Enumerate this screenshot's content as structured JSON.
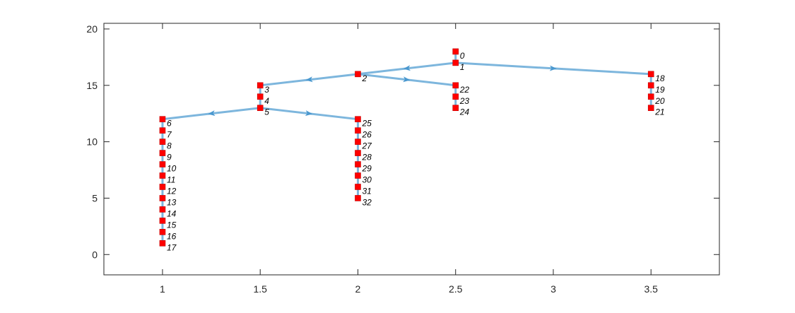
{
  "figure": {
    "type": "directed-tree",
    "colors": {
      "edge": "#7db6dd",
      "arrow": "#4a98cf",
      "node": "#ff0000",
      "node_border": "#c00000",
      "axes": "#262626"
    }
  },
  "axes": {
    "xlim": [
      0.7,
      3.85
    ],
    "ylim": [
      -1.8,
      20.5
    ],
    "xticks": [
      {
        "value": 1,
        "label": "1"
      },
      {
        "value": 1.5,
        "label": "1.5"
      },
      {
        "value": 2,
        "label": "2"
      },
      {
        "value": 2.5,
        "label": "2.5"
      },
      {
        "value": 3,
        "label": "3"
      },
      {
        "value": 3.5,
        "label": "3.5"
      }
    ],
    "yticks": [
      {
        "value": 0,
        "label": "0"
      },
      {
        "value": 5,
        "label": "5"
      },
      {
        "value": 10,
        "label": "10"
      },
      {
        "value": 15,
        "label": "15"
      },
      {
        "value": 20,
        "label": "20"
      }
    ],
    "grid": false,
    "box": true
  },
  "nodes": [
    {
      "id": "0",
      "label": "0",
      "x": 2.5,
      "y": 18
    },
    {
      "id": "1",
      "label": "1",
      "x": 2.5,
      "y": 17
    },
    {
      "id": "2",
      "label": "2",
      "x": 2.0,
      "y": 16
    },
    {
      "id": "3",
      "label": "3",
      "x": 1.5,
      "y": 15
    },
    {
      "id": "4",
      "label": "4",
      "x": 1.5,
      "y": 14
    },
    {
      "id": "5",
      "label": "5",
      "x": 1.5,
      "y": 13
    },
    {
      "id": "6",
      "label": "6",
      "x": 1.0,
      "y": 12
    },
    {
      "id": "7",
      "label": "7",
      "x": 1.0,
      "y": 11
    },
    {
      "id": "8",
      "label": "8",
      "x": 1.0,
      "y": 10
    },
    {
      "id": "9",
      "label": "9",
      "x": 1.0,
      "y": 9
    },
    {
      "id": "10",
      "label": "10",
      "x": 1.0,
      "y": 8
    },
    {
      "id": "11",
      "label": "11",
      "x": 1.0,
      "y": 7
    },
    {
      "id": "12",
      "label": "12",
      "x": 1.0,
      "y": 6
    },
    {
      "id": "13",
      "label": "13",
      "x": 1.0,
      "y": 5
    },
    {
      "id": "14",
      "label": "14",
      "x": 1.0,
      "y": 4
    },
    {
      "id": "15",
      "label": "15",
      "x": 1.0,
      "y": 3
    },
    {
      "id": "16",
      "label": "16",
      "x": 1.0,
      "y": 2
    },
    {
      "id": "17",
      "label": "17",
      "x": 1.0,
      "y": 1
    },
    {
      "id": "18",
      "label": "18",
      "x": 3.5,
      "y": 16
    },
    {
      "id": "19",
      "label": "19",
      "x": 3.5,
      "y": 15
    },
    {
      "id": "20",
      "label": "20",
      "x": 3.5,
      "y": 14
    },
    {
      "id": "21",
      "label": "21",
      "x": 3.5,
      "y": 13
    },
    {
      "id": "22",
      "label": "22",
      "x": 2.5,
      "y": 15
    },
    {
      "id": "23",
      "label": "23",
      "x": 2.5,
      "y": 14
    },
    {
      "id": "24",
      "label": "24",
      "x": 2.5,
      "y": 13
    },
    {
      "id": "25",
      "label": "25",
      "x": 2.0,
      "y": 12
    },
    {
      "id": "26",
      "label": "26",
      "x": 2.0,
      "y": 11
    },
    {
      "id": "27",
      "label": "27",
      "x": 2.0,
      "y": 10
    },
    {
      "id": "28",
      "label": "28",
      "x": 2.0,
      "y": 9
    },
    {
      "id": "29",
      "label": "29",
      "x": 2.0,
      "y": 8
    },
    {
      "id": "30",
      "label": "30",
      "x": 2.0,
      "y": 7
    },
    {
      "id": "31",
      "label": "31",
      "x": 2.0,
      "y": 6
    },
    {
      "id": "32",
      "label": "32",
      "x": 2.0,
      "y": 5
    }
  ],
  "edges": [
    {
      "from": "0",
      "to": "1",
      "arrow": false
    },
    {
      "from": "1",
      "to": "2",
      "arrow": true
    },
    {
      "from": "1",
      "to": "18",
      "arrow": true
    },
    {
      "from": "2",
      "to": "3",
      "arrow": true
    },
    {
      "from": "2",
      "to": "22",
      "arrow": true
    },
    {
      "from": "3",
      "to": "4",
      "arrow": false
    },
    {
      "from": "4",
      "to": "5",
      "arrow": false
    },
    {
      "from": "5",
      "to": "6",
      "arrow": true
    },
    {
      "from": "5",
      "to": "25",
      "arrow": true
    },
    {
      "from": "6",
      "to": "7",
      "arrow": false
    },
    {
      "from": "7",
      "to": "8",
      "arrow": false
    },
    {
      "from": "8",
      "to": "9",
      "arrow": false
    },
    {
      "from": "9",
      "to": "10",
      "arrow": false
    },
    {
      "from": "10",
      "to": "11",
      "arrow": false
    },
    {
      "from": "11",
      "to": "12",
      "arrow": false
    },
    {
      "from": "12",
      "to": "13",
      "arrow": false
    },
    {
      "from": "13",
      "to": "14",
      "arrow": false
    },
    {
      "from": "14",
      "to": "15",
      "arrow": false
    },
    {
      "from": "15",
      "to": "16",
      "arrow": false
    },
    {
      "from": "16",
      "to": "17",
      "arrow": false
    },
    {
      "from": "18",
      "to": "19",
      "arrow": false
    },
    {
      "from": "19",
      "to": "20",
      "arrow": false
    },
    {
      "from": "20",
      "to": "21",
      "arrow": false
    },
    {
      "from": "22",
      "to": "23",
      "arrow": false
    },
    {
      "from": "23",
      "to": "24",
      "arrow": false
    },
    {
      "from": "25",
      "to": "26",
      "arrow": false
    },
    {
      "from": "26",
      "to": "27",
      "arrow": false
    },
    {
      "from": "27",
      "to": "28",
      "arrow": false
    },
    {
      "from": "28",
      "to": "29",
      "arrow": false
    },
    {
      "from": "29",
      "to": "30",
      "arrow": false
    },
    {
      "from": "30",
      "to": "31",
      "arrow": false
    },
    {
      "from": "31",
      "to": "32",
      "arrow": false
    }
  ]
}
